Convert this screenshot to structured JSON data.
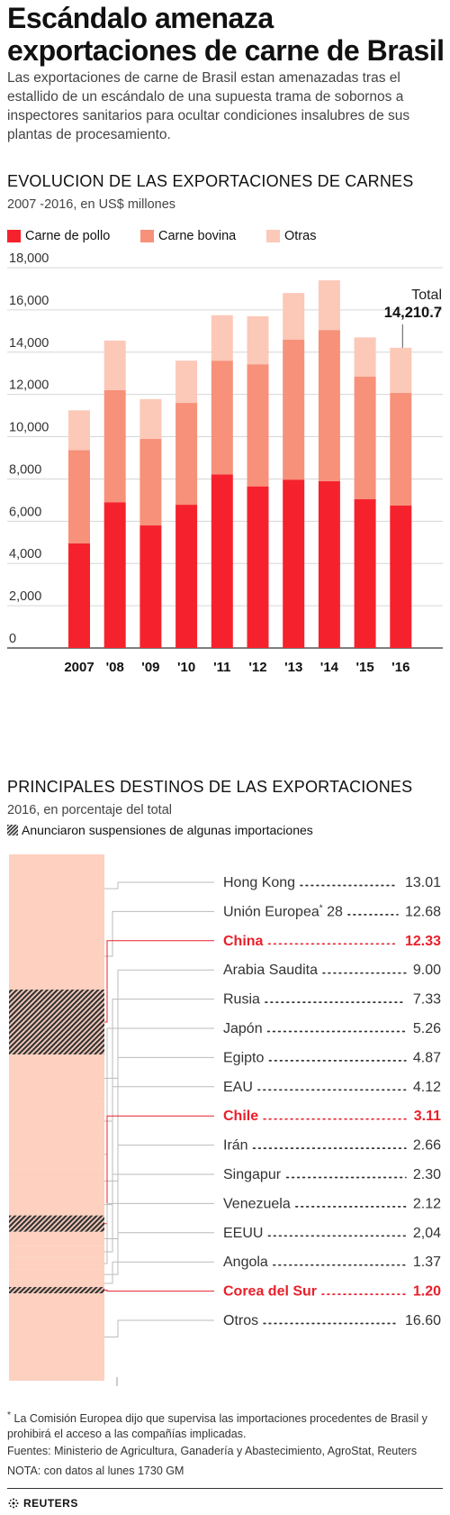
{
  "headline": "Escándalo amenaza exportaciones de carne de Brasil",
  "intro": "Las exportaciones de carne de Brasil estan amenazadas tras el estallido de un escándalo de una supuesta trama de sobornos a inspectores sanitarios para ocultar condiciones insalubres de sus plantas de procesamiento.",
  "colors": {
    "pollo": "#f5222d",
    "bovina": "#f7917a",
    "otras": "#fcc8b8",
    "highlight": "#e8202a",
    "destinos_bar": "#fdd0bf",
    "hatch": "#333333"
  },
  "chart_data": [
    {
      "type": "bar",
      "stacked": true,
      "title": "EVOLUCION DE LAS EXPORTACIONES DE CARNES",
      "subtitle": "2007 -2016, en US$ millones",
      "categories": [
        "2007",
        "'08",
        "'09",
        "'10",
        "'11",
        "'12",
        "'13",
        "'14",
        "'15",
        "'16"
      ],
      "series": [
        {
          "name": "Carne de pollo",
          "values": [
            4950,
            6900,
            5800,
            6780,
            8220,
            7650,
            7970,
            7900,
            7050,
            6750
          ]
        },
        {
          "name": "Carne bovina",
          "values": [
            4420,
            5300,
            4100,
            4820,
            5380,
            5780,
            6630,
            7150,
            5800,
            5320
          ]
        },
        {
          "name": "Otras",
          "values": [
            1880,
            2350,
            1880,
            2000,
            2150,
            2270,
            2200,
            2350,
            1850,
            2140.7
          ]
        }
      ],
      "yticks": [
        "0",
        "2,000",
        "4,000",
        "6,000",
        "8,000",
        "10,000",
        "12,000",
        "14,000",
        "16,000",
        "18,000"
      ],
      "ylim": [
        0,
        18000
      ],
      "grid": true,
      "legend_position": "top-left",
      "annotation": {
        "label": "Total",
        "value": "14,210.7"
      }
    },
    {
      "type": "bar",
      "stacked": true,
      "title": "PRINCIPALES DESTINOS DE LAS EXPORTACIONES",
      "subtitle": "2016, en porcentaje del total",
      "legend": "Anunciaron suspensiones de algunas importaciones",
      "rows": [
        {
          "name": "Hong Kong",
          "value": "13.01",
          "highlight": false,
          "suspended": false
        },
        {
          "name": "Unión Europea",
          "sup": "*",
          "suffix": " 28",
          "value": "12.68",
          "highlight": false,
          "suspended": false
        },
        {
          "name": "China",
          "value": "12.33",
          "highlight": true,
          "suspended": true
        },
        {
          "name": "Arabia Saudita",
          "value": "9.00",
          "highlight": false,
          "suspended": false
        },
        {
          "name": "Rusia",
          "value": "7.33",
          "highlight": false,
          "suspended": false
        },
        {
          "name": "Japón",
          "value": "5.26",
          "highlight": false,
          "suspended": false
        },
        {
          "name": "Egipto",
          "value": "4.87",
          "highlight": false,
          "suspended": false
        },
        {
          "name": "EAU",
          "value": "4.12",
          "highlight": false,
          "suspended": false
        },
        {
          "name": "Chile",
          "value": "3.11",
          "highlight": true,
          "suspended": true
        },
        {
          "name": "Irán",
          "value": "2.66",
          "highlight": false,
          "suspended": false
        },
        {
          "name": "Singapur",
          "value": "2.30",
          "highlight": false,
          "suspended": false
        },
        {
          "name": "Venezuela",
          "value": "2.12",
          "highlight": false,
          "suspended": false
        },
        {
          "name": "EEUU",
          "value": "2,04",
          "highlight": false,
          "suspended": false
        },
        {
          "name": "Angola",
          "value": "1.37",
          "highlight": false,
          "suspended": false
        },
        {
          "name": "Corea del Sur",
          "value": "1.20",
          "highlight": true,
          "suspended": true
        },
        {
          "name": "Otros",
          "value": "16.60",
          "highlight": false,
          "suspended": false
        }
      ]
    }
  ],
  "footnote": {
    "mark": "*",
    "text": " La Comisión Europea dijo que supervisa las importaciones procedentes de Brasil y prohibirá el acceso a las compañías implicadas."
  },
  "sources": "Fuentes: Ministerio de Agricultura, Ganadería y Abastecimiento, AgroStat, Reuters",
  "note": "NOTA: con datos al lunes 1730 GM",
  "brand": "REUTERS"
}
